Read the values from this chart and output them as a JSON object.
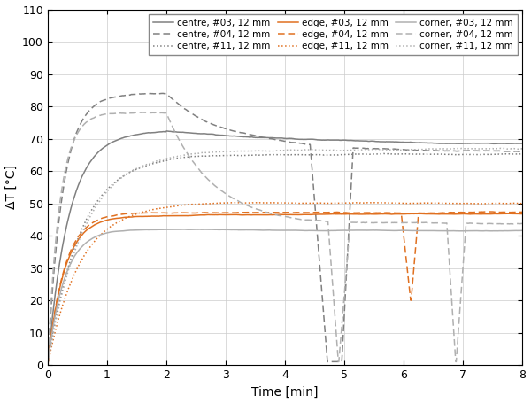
{
  "xlabel": "Time [min]",
  "ylabel": "ΔT [°C]",
  "xlim": [
    0,
    8
  ],
  "ylim": [
    0,
    110
  ],
  "xticks": [
    0,
    1,
    2,
    3,
    4,
    5,
    6,
    7,
    8
  ],
  "yticks": [
    0,
    10,
    20,
    30,
    40,
    50,
    60,
    70,
    80,
    90,
    100,
    110
  ],
  "figsize": [
    6.0,
    4.55
  ],
  "dpi": 100,
  "colors": {
    "centre": "#808080",
    "edge": "#e07020",
    "corner": "#b0b0b0"
  },
  "bg_color": "#ffffff",
  "legend_fontsize": 7.5,
  "axis_fontsize": 10,
  "tick_fontsize": 9
}
